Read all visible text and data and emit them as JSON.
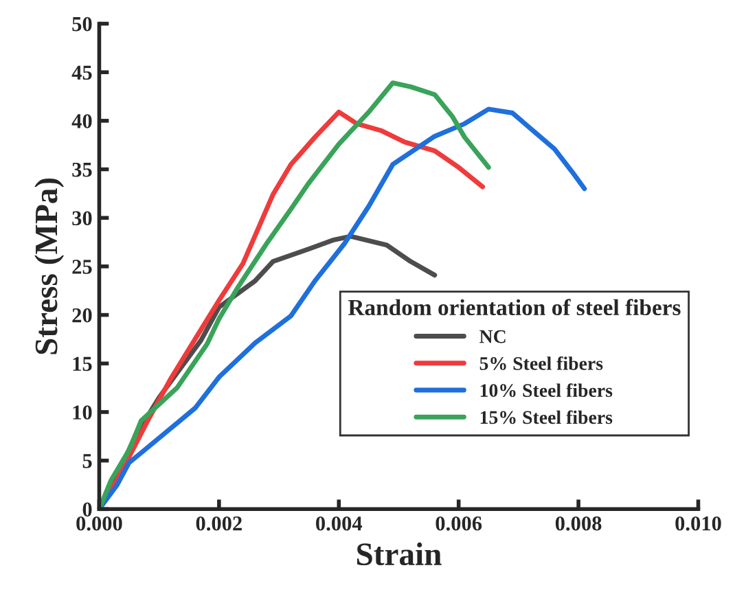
{
  "chart_data": {
    "type": "line",
    "xlabel": "Strain",
    "ylabel": "Stress (MPa)",
    "legend_title": "Random orientation of steel fibers",
    "legend": "right",
    "grid": false,
    "marker": "none",
    "line_style": "solid",
    "xlim": [
      0,
      0.01
    ],
    "xticks": [
      {
        "value": 0,
        "label": "0.000"
      },
      {
        "value": 0.002,
        "label": "0.002"
      },
      {
        "value": 0.004,
        "label": "0.004"
      },
      {
        "value": 0.006,
        "label": "0.006"
      },
      {
        "value": 0.008,
        "label": "0.008"
      },
      {
        "value": 0.01,
        "label": "0.010"
      }
    ],
    "ylim": [
      0,
      50
    ],
    "yticks": [
      0,
      5,
      10,
      15,
      20,
      25,
      30,
      35,
      40,
      45,
      50
    ],
    "series": [
      {
        "name": "NC",
        "color": "#4d4d4d",
        "x": [
          0,
          0.0003,
          0.0006,
          0.001,
          0.0017,
          0.002,
          0.0026,
          0.0029,
          0.0035,
          0.0039,
          0.0042,
          0.0048,
          0.0052,
          0.0056
        ],
        "values": [
          0,
          3.5,
          7.5,
          11.5,
          17.4,
          20.8,
          23.5,
          25.5,
          26.8,
          27.7,
          28.1,
          27.2,
          25.5,
          24.1
        ]
      },
      {
        "name": "5% Steel fibers",
        "color": "#ef3b3b",
        "x": [
          0,
          0.0003,
          0.0008,
          0.0012,
          0.0016,
          0.002,
          0.0024,
          0.0029,
          0.0032,
          0.0036,
          0.004,
          0.0043,
          0.0047,
          0.0051,
          0.0056,
          0.006,
          0.0064
        ],
        "values": [
          0,
          3,
          9,
          13.5,
          17.5,
          21.5,
          25.3,
          32.4,
          35.5,
          38.3,
          40.9,
          39.7,
          39,
          37.8,
          36.9,
          35.2,
          33.2
        ]
      },
      {
        "name": "10% Steel fibers",
        "color": "#1f6fdc",
        "x": [
          0,
          0.0003,
          0.0005,
          0.0007,
          0.0016,
          0.002,
          0.0026,
          0.0032,
          0.0036,
          0.0041,
          0.0045,
          0.0049,
          0.0056,
          0.0061,
          0.0065,
          0.0069,
          0.0072,
          0.0076,
          0.0079,
          0.0081
        ],
        "values": [
          0,
          2.5,
          4.8,
          5.8,
          10.4,
          13.6,
          17.1,
          19.9,
          23.5,
          27.4,
          31.2,
          35.5,
          38.4,
          39.7,
          41.2,
          40.8,
          39.2,
          37.1,
          34.7,
          33
        ]
      },
      {
        "name": "15% Steel fibers",
        "color": "#3aa35a",
        "x": [
          0,
          0.0002,
          0.0005,
          0.0007,
          0.0013,
          0.0018,
          0.002,
          0.0023,
          0.0028,
          0.0032,
          0.0035,
          0.004,
          0.0045,
          0.0049,
          0.0052,
          0.0056,
          0.0059,
          0.0061,
          0.0065
        ],
        "values": [
          0,
          3,
          6.1,
          9.1,
          12.5,
          17,
          19.6,
          22.7,
          27.4,
          30.9,
          33.6,
          37.6,
          40.9,
          43.9,
          43.5,
          42.7,
          40.4,
          38.3,
          35.2
        ]
      }
    ]
  }
}
